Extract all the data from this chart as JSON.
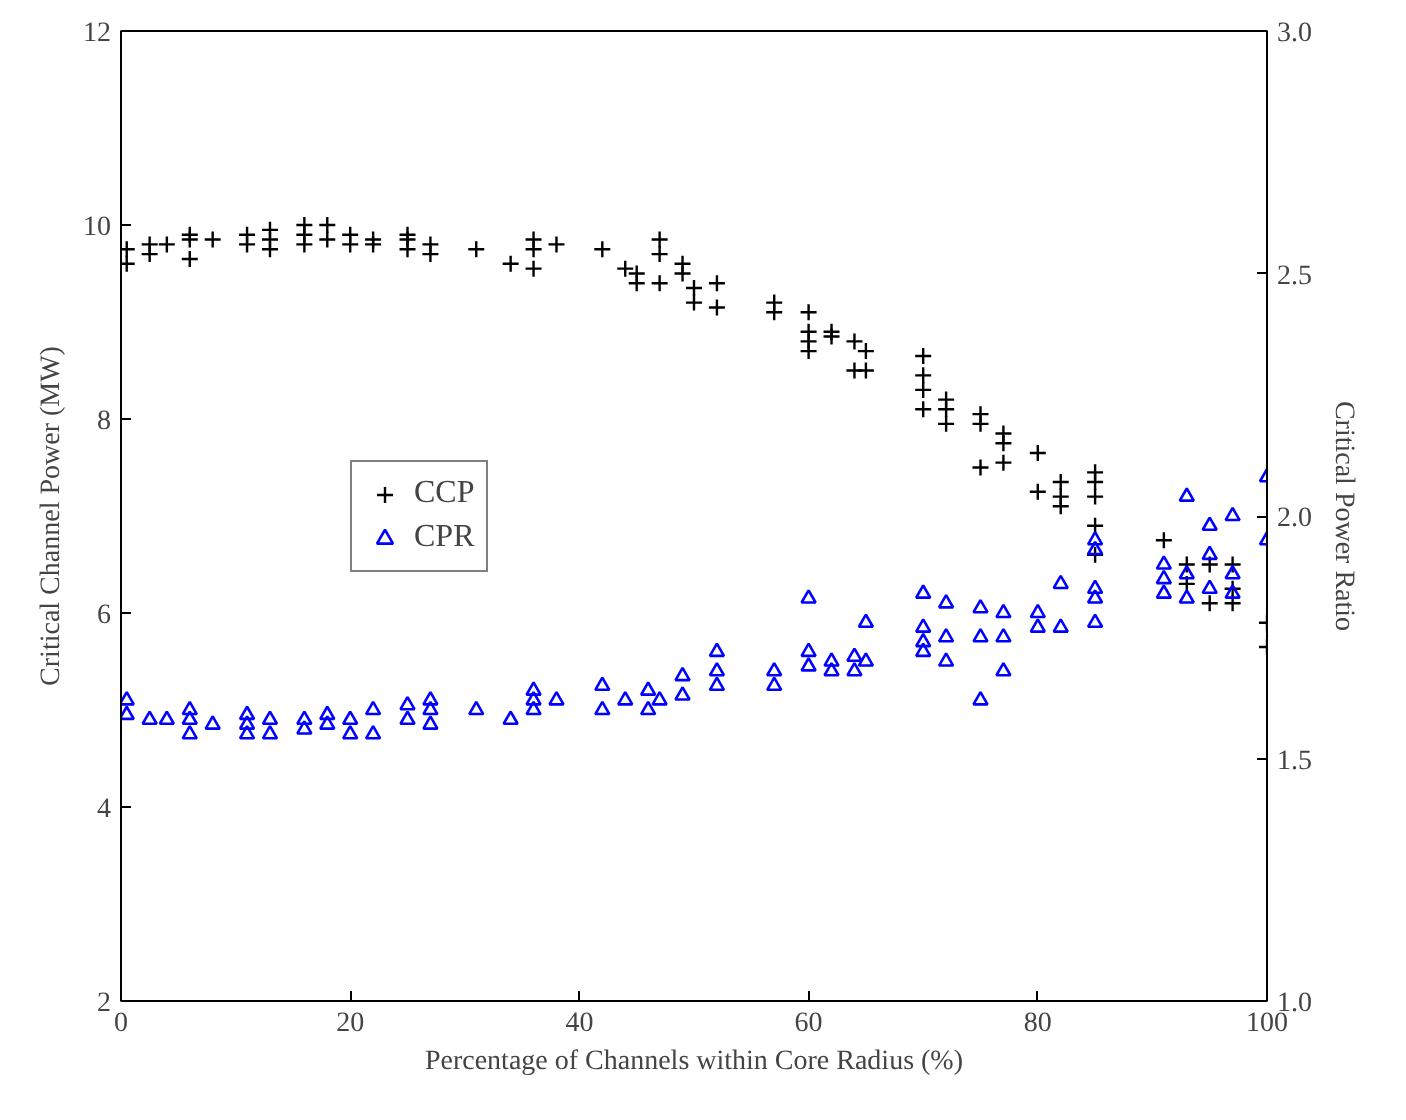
{
  "chart_data": {
    "type": "scatter",
    "xlabel": "Percentage of Channels within Core Radius (%)",
    "ylabel": "Critical Channel Power (MW)",
    "y2label": "Critical Power Ratio",
    "xlim": [
      0,
      100
    ],
    "xticks": [
      0,
      20,
      40,
      60,
      80,
      100
    ],
    "ylim": [
      2,
      12
    ],
    "yticks": [
      2,
      4,
      6,
      8,
      10,
      12
    ],
    "y2lim": [
      1,
      3
    ],
    "y2ticks": [
      {
        "value": 1,
        "label": "1.0"
      },
      {
        "value": 1.5,
        "label": "1.5"
      },
      {
        "value": 2,
        "label": "2.0"
      },
      {
        "value": 2.5,
        "label": "2.5"
      },
      {
        "value": 3,
        "label": "3.0"
      }
    ],
    "grid": false,
    "legend": "left",
    "series": [
      {
        "name": "CCP",
        "color": "#000000",
        "marker": "cross",
        "x": [
          0.5,
          0.5,
          2.5,
          2.5,
          4,
          6,
          6,
          6,
          8,
          11,
          11,
          13,
          13,
          13,
          16,
          16,
          16,
          18,
          18,
          20,
          20,
          22,
          22,
          25,
          25,
          25,
          27,
          27,
          31,
          34,
          36,
          36,
          36,
          38,
          42,
          44,
          45,
          45,
          47,
          47,
          47,
          49,
          49,
          50,
          50,
          52,
          52,
          57,
          57,
          60,
          60,
          60,
          60,
          62,
          62,
          64,
          64,
          65,
          65,
          70,
          70,
          70,
          70,
          72,
          72,
          72,
          75,
          75,
          75,
          77,
          77,
          77,
          80,
          80,
          82,
          82,
          82,
          85,
          85,
          85,
          85,
          85,
          91,
          93,
          93,
          95,
          95,
          97,
          97,
          97,
          100,
          100
        ],
        "values": [
          9.6,
          9.75,
          9.7,
          9.8,
          9.8,
          9.65,
          9.85,
          9.9,
          9.85,
          9.8,
          9.9,
          9.75,
          9.85,
          9.95,
          9.8,
          9.9,
          10.0,
          9.85,
          10.0,
          9.8,
          9.9,
          9.8,
          9.85,
          9.85,
          9.75,
          9.9,
          9.7,
          9.8,
          9.75,
          9.6,
          9.55,
          9.85,
          9.75,
          9.8,
          9.75,
          9.55,
          9.5,
          9.4,
          9.4,
          9.7,
          9.85,
          9.5,
          9.6,
          9.2,
          9.35,
          9.15,
          9.4,
          9.2,
          9.1,
          8.8,
          8.9,
          9.1,
          8.7,
          8.9,
          8.85,
          8.5,
          8.8,
          8.5,
          8.7,
          8.1,
          8.3,
          8.45,
          8.65,
          7.95,
          8.1,
          8.2,
          7.5,
          7.95,
          8.05,
          7.55,
          7.75,
          7.85,
          7.25,
          7.65,
          7.1,
          7.2,
          7.35,
          6.6,
          6.9,
          7.2,
          7.35,
          7.45,
          6.75,
          6.3,
          6.5,
          6.1,
          6.5,
          6.1,
          6.25,
          6.5,
          5.65,
          5.9
        ]
      },
      {
        "name": "CPR",
        "color": "#0000ff",
        "marker": "triangle",
        "axis": "y2",
        "x": [
          0.5,
          0.5,
          2.5,
          4,
          6,
          6,
          6,
          8,
          11,
          11,
          11,
          13,
          13,
          16,
          16,
          18,
          18,
          20,
          20,
          22,
          22,
          25,
          25,
          27,
          27,
          27,
          31,
          34,
          36,
          36,
          36,
          38,
          42,
          42,
          44,
          46,
          46,
          47,
          49,
          49,
          52,
          52,
          52,
          57,
          57,
          60,
          60,
          60,
          62,
          62,
          64,
          64,
          65,
          65,
          70,
          70,
          70,
          70,
          72,
          72,
          72,
          75,
          75,
          75,
          77,
          77,
          77,
          80,
          80,
          82,
          82,
          85,
          85,
          85,
          85,
          85,
          91,
          91,
          91,
          93,
          93,
          93,
          95,
          95,
          95,
          97,
          97,
          97,
          100,
          100
        ],
        "values": [
          1.62,
          1.59,
          1.58,
          1.58,
          1.55,
          1.58,
          1.6,
          1.57,
          1.55,
          1.57,
          1.59,
          1.55,
          1.58,
          1.56,
          1.58,
          1.57,
          1.59,
          1.55,
          1.58,
          1.55,
          1.6,
          1.58,
          1.61,
          1.57,
          1.6,
          1.62,
          1.6,
          1.58,
          1.6,
          1.62,
          1.64,
          1.62,
          1.6,
          1.65,
          1.62,
          1.6,
          1.64,
          1.62,
          1.63,
          1.67,
          1.65,
          1.68,
          1.72,
          1.65,
          1.68,
          1.69,
          1.72,
          1.83,
          1.68,
          1.7,
          1.68,
          1.71,
          1.7,
          1.78,
          1.72,
          1.74,
          1.77,
          1.84,
          1.7,
          1.75,
          1.82,
          1.62,
          1.75,
          1.81,
          1.68,
          1.75,
          1.8,
          1.77,
          1.8,
          1.77,
          1.86,
          1.78,
          1.83,
          1.85,
          1.93,
          1.95,
          1.84,
          1.87,
          1.9,
          1.83,
          1.88,
          2.04,
          1.85,
          1.92,
          1.98,
          1.84,
          1.88,
          2.0,
          1.95,
          2.08
        ]
      }
    ]
  }
}
